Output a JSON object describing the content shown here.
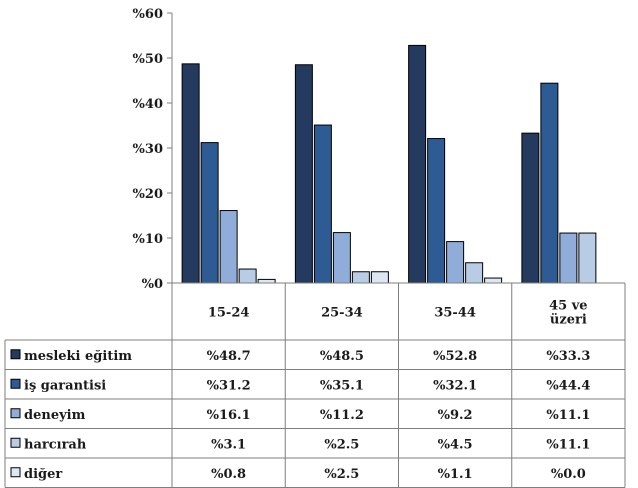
{
  "chart_data": {
    "type": "bar",
    "categories": [
      "15-24",
      "25-34",
      "35-44",
      "45 ve üzeri"
    ],
    "category_lines": [
      [
        "15-24"
      ],
      [
        "25-34"
      ],
      [
        "35-44"
      ],
      [
        "45 ve",
        "üzeri"
      ]
    ],
    "ylim": [
      0,
      60
    ],
    "y_ticks": [
      0,
      10,
      20,
      30,
      40,
      50,
      60
    ],
    "y_tick_labels": [
      "%0",
      "%10",
      "%20",
      "%30",
      "%40",
      "%50",
      "%60"
    ],
    "grid": false,
    "legend": "data-table",
    "series": [
      {
        "name": "mesleki eğitim",
        "color": "#243a5e",
        "values": [
          48.7,
          48.5,
          52.8,
          33.3
        ],
        "labels": [
          "%48.7",
          "%48.5",
          "%52.8",
          "%33.3"
        ]
      },
      {
        "name": "iş garantisi",
        "color": "#2e5b93",
        "values": [
          31.2,
          35.1,
          32.1,
          44.4
        ],
        "labels": [
          "%31.2",
          "%35.1",
          "%32.1",
          "%44.4"
        ]
      },
      {
        "name": "deneyim",
        "color": "#8fadd8",
        "values": [
          16.1,
          11.2,
          9.2,
          11.1
        ],
        "labels": [
          "%16.1",
          "%11.2",
          "%9.2",
          "%11.1"
        ]
      },
      {
        "name": "harcırah",
        "color": "#b8cce6",
        "values": [
          3.1,
          2.5,
          4.5,
          11.1
        ],
        "labels": [
          "%3.1",
          "%2.5",
          "%4.5",
          "%11.1"
        ]
      },
      {
        "name": "diğer",
        "color": "#dde7f3",
        "values": [
          0.8,
          2.5,
          1.1,
          0.0
        ],
        "labels": [
          "%0.8",
          "%2.5",
          "%1.1",
          "%0.0"
        ]
      }
    ]
  }
}
